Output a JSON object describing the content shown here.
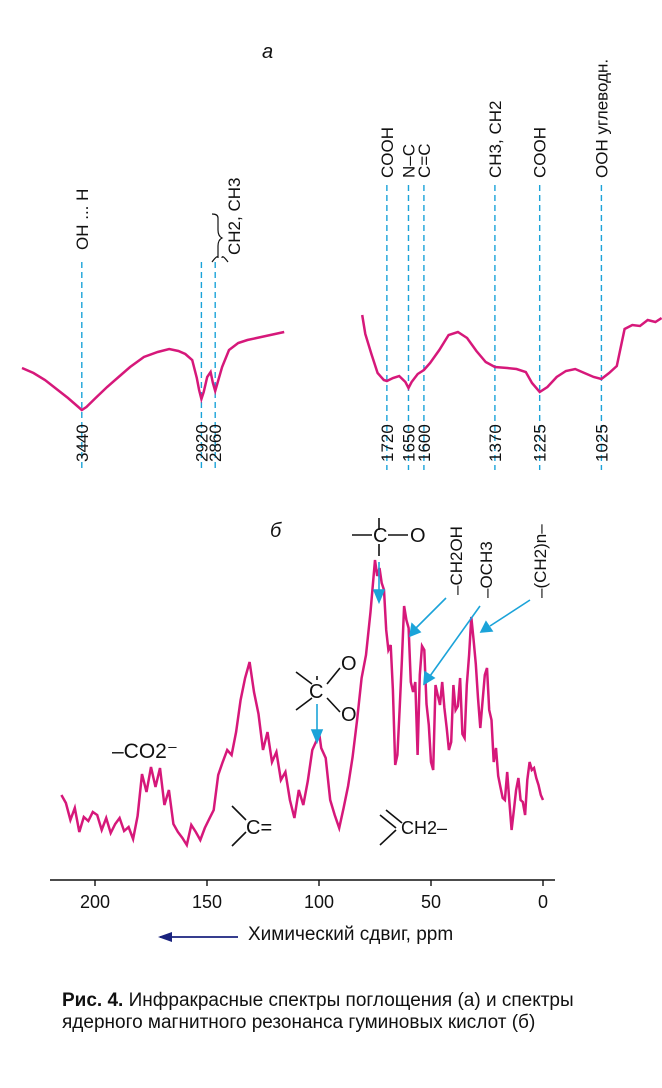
{
  "colors": {
    "spectrum": "#d6187a",
    "guide": "#1ba3d9",
    "arrow": "#1a237e",
    "axis": "#111111"
  },
  "chart_data": [
    {
      "type": "line",
      "panel_label": "a",
      "title": "",
      "xlabel": "",
      "ylabel": "",
      "grid": false,
      "legend": "none",
      "x_unit": "cm-1",
      "left_segment_xlim": [
        3700,
        2500
      ],
      "right_segment_xlim": [
        1820,
        900
      ],
      "ticks": [
        {
          "wn": "3440",
          "label": "OH ... H"
        },
        {
          "wn": "2920",
          "label": ""
        },
        {
          "wn": "2860",
          "label": ""
        },
        {
          "wn": "1720",
          "label": "COOH"
        },
        {
          "wn": "1650",
          "label": "N–C"
        },
        {
          "wn": "1600",
          "label": "C=C"
        },
        {
          "wn": "1370",
          "label": "CH3, CH2"
        },
        {
          "wn": "1225",
          "label": "COOH"
        },
        {
          "wn": "1025",
          "label": "OOH углеводн."
        }
      ],
      "brace_label": "CH2, CH3",
      "series": [
        {
          "segment": "left",
          "x": [
            3700,
            3650,
            3600,
            3550,
            3500,
            3460,
            3440,
            3420,
            3380,
            3330,
            3280,
            3230,
            3170,
            3110,
            3060,
            3020,
            2990,
            2960,
            2940,
            2930,
            2920,
            2910,
            2895,
            2880,
            2870,
            2860,
            2850,
            2830,
            2800,
            2760,
            2720,
            2680,
            2640,
            2600,
            2560
          ],
          "y": [
            62,
            57,
            50,
            41,
            32,
            24,
            20,
            23,
            32,
            43,
            53,
            63,
            73,
            78,
            81,
            79,
            76,
            70,
            52,
            40,
            31,
            38,
            53,
            58,
            47,
            39,
            47,
            63,
            80,
            87,
            90,
            92,
            94,
            96,
            98
          ]
        },
        {
          "segment": "right",
          "x": [
            1800,
            1790,
            1770,
            1750,
            1730,
            1720,
            1700,
            1680,
            1660,
            1650,
            1640,
            1620,
            1600,
            1580,
            1550,
            1520,
            1490,
            1460,
            1430,
            1400,
            1370,
            1330,
            1300,
            1270,
            1250,
            1225,
            1200,
            1170,
            1140,
            1110,
            1080,
            1050,
            1025,
            1000,
            975,
            950,
            925,
            900,
            875,
            850,
            830
          ],
          "y": [
            115,
            96,
            76,
            57,
            50,
            49,
            52,
            54,
            48,
            42,
            48,
            56,
            60,
            67,
            80,
            95,
            98,
            92,
            79,
            68,
            63,
            62,
            61,
            58,
            47,
            38,
            43,
            53,
            59,
            61,
            57,
            53,
            51,
            57,
            64,
            101,
            105,
            104,
            110,
            108,
            112
          ]
        }
      ]
    },
    {
      "type": "line",
      "panel_label": "б",
      "title": "",
      "xlabel": "Химический сдвиг, ppm",
      "ylabel": "",
      "xlim": [
        215,
        0
      ],
      "xticks": [
        200,
        150,
        100,
        50,
        0
      ],
      "grid": false,
      "legend": "none",
      "series": [
        {
          "x": [
            215,
            213,
            211,
            209,
            207,
            205,
            203,
            201,
            199,
            197,
            195,
            193,
            191,
            189,
            187,
            185,
            183,
            181,
            179,
            177,
            175,
            173,
            171,
            169,
            167,
            165,
            163,
            161,
            159,
            157,
            155,
            153,
            151,
            149,
            147,
            145,
            143,
            141,
            139,
            137,
            135,
            133,
            131,
            129,
            127,
            125,
            123,
            121,
            119,
            117,
            115,
            113,
            111,
            109,
            107,
            105,
            103,
            101,
            100,
            99,
            97,
            95,
            93,
            91,
            89,
            87,
            85,
            83,
            81,
            79,
            77,
            75,
            74,
            73,
            72,
            71,
            70,
            69,
            68,
            67,
            66,
            65,
            64,
            63,
            62,
            61,
            60,
            59,
            58,
            57,
            56,
            55,
            54,
            53,
            52,
            51,
            50,
            49,
            48,
            47,
            46,
            45,
            44,
            43,
            42,
            41,
            40,
            39,
            38,
            37,
            36,
            35,
            34,
            33,
            32,
            31,
            30,
            29,
            28,
            27,
            26,
            25,
            24,
            23,
            22,
            21,
            20,
            19,
            18,
            17,
            16,
            15,
            14,
            13,
            12,
            11,
            10,
            9,
            8,
            7,
            6,
            5,
            4,
            3,
            2,
            1,
            0
          ],
          "y": [
            65,
            57,
            40,
            52,
            28,
            43,
            39,
            48,
            45,
            30,
            42,
            27,
            36,
            42,
            29,
            33,
            21,
            44,
            86,
            68,
            93,
            73,
            92,
            55,
            70,
            36,
            28,
            22,
            15,
            35,
            28,
            20,
            32,
            41,
            50,
            85,
            98,
            110,
            105,
            128,
            160,
            182,
            198,
            168,
            146,
            110,
            128,
            98,
            108,
            80,
            88,
            60,
            42,
            70,
            55,
            79,
            110,
            120,
            128,
            112,
            102,
            60,
            45,
            32,
            52,
            74,
            103,
            140,
            182,
            205,
            248,
            300,
            284,
            292,
            277,
            270,
            230,
            210,
            215,
            170,
            95,
            105,
            150,
            200,
            254,
            240,
            232,
            178,
            168,
            178,
            105,
            185,
            214,
            210,
            156,
            135,
            98,
            90,
            175,
            165,
            155,
            178,
            152,
            132,
            110,
            118,
            175,
            150,
            154,
            182,
            126,
            122,
            175,
            205,
            243,
            220,
            196,
            162,
            132,
            158,
            185,
            192,
            150,
            140,
            98,
            112,
            84,
            73,
            62,
            60,
            88,
            58,
            30,
            50,
            70,
            82,
            60,
            58,
            45,
            80,
            98,
            90,
            92,
            82,
            75,
            65,
            60
          ]
        }
      ],
      "annotations": [
        "–CO2⁻",
        "–CH2OH",
        "–OCH3",
        "–(CH2)n–",
        "O",
        "O",
        "O",
        "C",
        "C",
        "C=",
        "CH2–"
      ]
    }
  ],
  "caption": {
    "prefix": "Рис. 4.",
    "text": " Инфракрасные спектры поглощения (а) и спектры ядерного магнитного резонанса гуминовых кислот (б)"
  }
}
